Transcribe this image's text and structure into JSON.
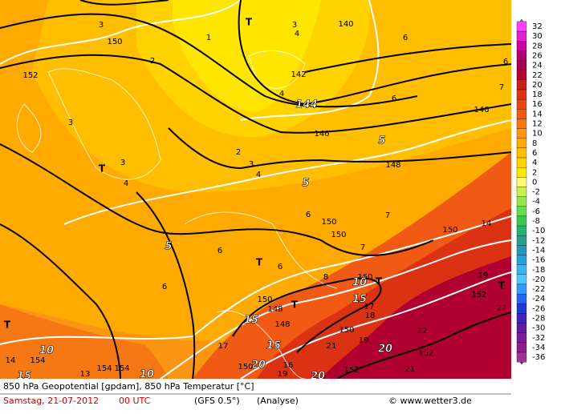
{
  "header": {
    "line1": "850 hPa Geopotential [gpdam], 850 hPa Temperatur [°C]",
    "date": "Samstag, 21-07-2012",
    "time": "00 UTC",
    "model": "(GFS 0.5°)",
    "run": "(Analyse)",
    "credit": "© www.wetter3.de"
  },
  "scale": [
    {
      "value": 32,
      "color": "#ff40ff"
    },
    {
      "value": 30,
      "color": "#e020d0"
    },
    {
      "value": 28,
      "color": "#c800a0"
    },
    {
      "value": 26,
      "color": "#b00070"
    },
    {
      "value": 24,
      "color": "#a00050"
    },
    {
      "value": 22,
      "color": "#b00030"
    },
    {
      "value": 20,
      "color": "#c81e1e"
    },
    {
      "value": 18,
      "color": "#dc3214"
    },
    {
      "value": 16,
      "color": "#e64614"
    },
    {
      "value": 14,
      "color": "#f05a14"
    },
    {
      "value": 12,
      "color": "#f57814"
    },
    {
      "value": 10,
      "color": "#fa9614"
    },
    {
      "value": 8,
      "color": "#ffaa00"
    },
    {
      "value": 6,
      "color": "#ffbe00"
    },
    {
      "value": 4,
      "color": "#ffd200"
    },
    {
      "value": 2,
      "color": "#ffe600"
    },
    {
      "value": 0,
      "color": "#fffa78"
    },
    {
      "value": -2,
      "color": "#c8f050"
    },
    {
      "value": -4,
      "color": "#96e650"
    },
    {
      "value": -6,
      "color": "#64dc50"
    },
    {
      "value": -8,
      "color": "#3cc850"
    },
    {
      "value": -10,
      "color": "#28b46e"
    },
    {
      "value": -12,
      "color": "#28a08c"
    },
    {
      "value": -14,
      "color": "#2896b4"
    },
    {
      "value": -16,
      "color": "#28a0dc"
    },
    {
      "value": -18,
      "color": "#3cb4f0"
    },
    {
      "value": -20,
      "color": "#50c8ff"
    },
    {
      "value": -22,
      "color": "#3c96ff"
    },
    {
      "value": -24,
      "color": "#2864f0"
    },
    {
      "value": -26,
      "color": "#1e3cd2"
    },
    {
      "value": -28,
      "color": "#3c28b4"
    },
    {
      "value": -30,
      "color": "#5a1ea0"
    },
    {
      "value": -32,
      "color": "#781e96"
    },
    {
      "value": -34,
      "color": "#8c1e8c"
    },
    {
      "value": -36,
      "color": "#a03296"
    }
  ],
  "map_labels": [
    "150",
    "152",
    "3",
    "2",
    "1",
    "T",
    "3",
    "4",
    "140",
    "6",
    "6",
    "142",
    "4",
    "144",
    "146",
    "6",
    "7",
    "146",
    "5",
    "148",
    "5",
    "3",
    "T",
    "3",
    "4",
    "2",
    "3",
    "4",
    "6",
    "150",
    "7",
    "150",
    "150",
    "14",
    "7",
    "5",
    "6",
    "T",
    "6",
    "6",
    "8",
    "10",
    "150",
    "T",
    "19",
    "T",
    "152",
    "22",
    "15",
    "17",
    "18",
    "T",
    "150",
    "148",
    "15",
    "148",
    "150",
    "22",
    "T",
    "10",
    "154",
    "14",
    "15",
    "13",
    "154",
    "154",
    "10",
    "19",
    "21",
    "20",
    "152",
    "21",
    "17",
    "15",
    "16",
    "20",
    "150",
    "19",
    "152",
    "20"
  ]
}
